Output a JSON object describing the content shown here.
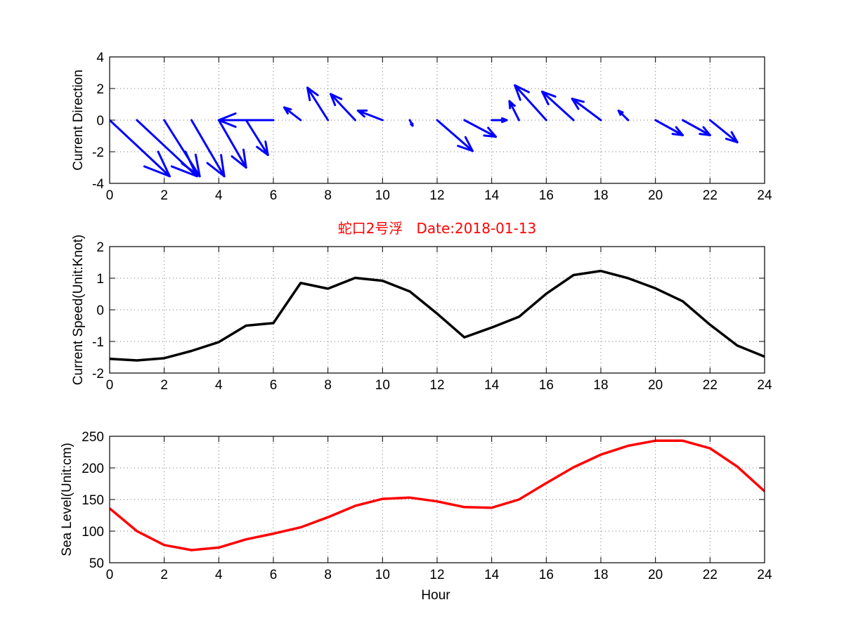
{
  "chart_data": [
    {
      "type": "quiver",
      "ylabel": "Current Direction",
      "xlim": [
        0,
        24
      ],
      "ylim": [
        -4,
        4
      ],
      "xticks": [
        0,
        2,
        4,
        6,
        8,
        10,
        12,
        14,
        16,
        18,
        20,
        22,
        24
      ],
      "yticks": [
        -4,
        -2,
        0,
        2,
        4
      ],
      "grid": true,
      "colors": {
        "arrows": "#0000ff"
      },
      "arrows": [
        {
          "x": 0,
          "u": 2.2,
          "v": -3.55
        },
        {
          "x": 1,
          "u": 2.2,
          "v": -3.55
        },
        {
          "x": 2,
          "u": 1.3,
          "v": -3.55
        },
        {
          "x": 3,
          "u": 1.2,
          "v": -3.55
        },
        {
          "x": 4,
          "u": 1.0,
          "v": -3.0
        },
        {
          "x": 5,
          "u": 0.8,
          "v": -2.2
        },
        {
          "x": 6,
          "u": -2.0,
          "v": 0.0
        },
        {
          "x": 7,
          "u": -0.6,
          "v": 0.8
        },
        {
          "x": 8,
          "u": -0.75,
          "v": 2.05
        },
        {
          "x": 9,
          "u": -0.9,
          "v": 1.65
        },
        {
          "x": 10,
          "u": -0.9,
          "v": 0.6
        },
        {
          "x": 11,
          "u": 0.1,
          "v": -0.35
        },
        {
          "x": 12,
          "u": 1.3,
          "v": -1.95
        },
        {
          "x": 13,
          "u": 1.15,
          "v": -1.05
        },
        {
          "x": 14,
          "u": 0.55,
          "v": 0.0
        },
        {
          "x": 15,
          "u": -0.35,
          "v": 1.2
        },
        {
          "x": 16,
          "u": -1.15,
          "v": 2.2
        },
        {
          "x": 17,
          "u": -1.15,
          "v": 1.8
        },
        {
          "x": 18,
          "u": -1.05,
          "v": 1.35
        },
        {
          "x": 19,
          "u": -0.35,
          "v": 0.6
        },
        {
          "x": 20,
          "u": 1.0,
          "v": -0.95
        },
        {
          "x": 21,
          "u": 1.0,
          "v": -0.95
        },
        {
          "x": 22,
          "u": 1.0,
          "v": -1.4
        }
      ]
    },
    {
      "type": "line",
      "title": "蛇口2号浮   Date:2018-01-13",
      "ylabel": "Current Speed(Unit:Knot)",
      "xlim": [
        0,
        24
      ],
      "ylim": [
        -2,
        2
      ],
      "xticks": [
        0,
        2,
        4,
        6,
        8,
        10,
        12,
        14,
        16,
        18,
        20,
        22,
        24
      ],
      "yticks": [
        -2,
        -1,
        0,
        1,
        2
      ],
      "grid": true,
      "colors": {
        "line": "#000000",
        "title": "#ff0000"
      },
      "x": [
        0,
        1,
        2,
        3,
        4,
        5,
        6,
        7,
        8,
        9,
        10,
        11,
        12,
        13,
        14,
        15,
        16,
        17,
        18,
        19,
        20,
        21,
        22,
        23,
        24
      ],
      "y": [
        -1.55,
        -1.6,
        -1.53,
        -1.3,
        -1.02,
        -0.5,
        -0.42,
        0.85,
        0.67,
        1.01,
        0.92,
        0.58,
        -0.12,
        -0.87,
        -0.56,
        -0.22,
        0.51,
        1.1,
        1.23,
        1.0,
        0.68,
        0.27,
        -0.47,
        -1.13,
        -1.48
      ]
    },
    {
      "type": "line",
      "xlabel": "Hour",
      "ylabel": "Sea Level(Unit:cm)",
      "xlim": [
        0,
        24
      ],
      "ylim": [
        50,
        250
      ],
      "xticks": [
        0,
        2,
        4,
        6,
        8,
        10,
        12,
        14,
        16,
        18,
        20,
        22,
        24
      ],
      "yticks": [
        50,
        100,
        150,
        200,
        250
      ],
      "grid": true,
      "colors": {
        "line": "#ff0000"
      },
      "x": [
        0,
        1,
        2,
        3,
        4,
        5,
        6,
        7,
        8,
        9,
        10,
        11,
        12,
        13,
        14,
        15,
        16,
        17,
        18,
        19,
        20,
        21,
        22,
        23,
        24
      ],
      "y": [
        136,
        100,
        78,
        70,
        74,
        87,
        96,
        106,
        122,
        140,
        151,
        153,
        147,
        138,
        137,
        150,
        176,
        201,
        221,
        235,
        243,
        243,
        231,
        202,
        163
      ]
    }
  ]
}
